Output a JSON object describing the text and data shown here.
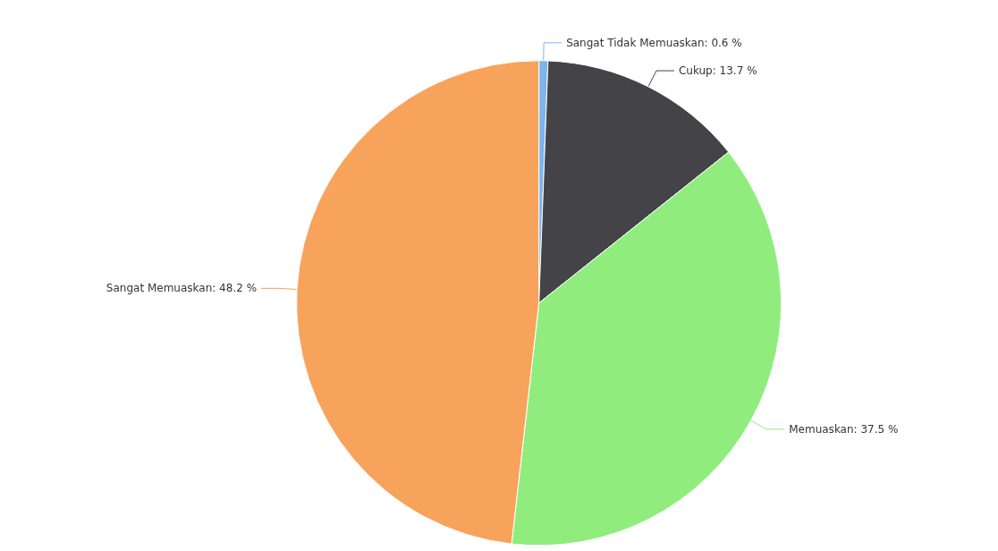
{
  "chart_data": {
    "type": "pie",
    "categories": [
      "Sangat Tidak Memuaskan",
      "Cukup",
      "Memuaskan",
      "Sangat Memuaskan"
    ],
    "values": [
      0.6,
      13.7,
      37.5,
      48.2
    ],
    "colors": [
      "#7cb5ec",
      "#434348",
      "#90ed7d",
      "#f7a35c"
    ],
    "value_labels": [
      "0.6 %",
      "13.7 %",
      "37.5 %",
      "48.2 %"
    ]
  }
}
